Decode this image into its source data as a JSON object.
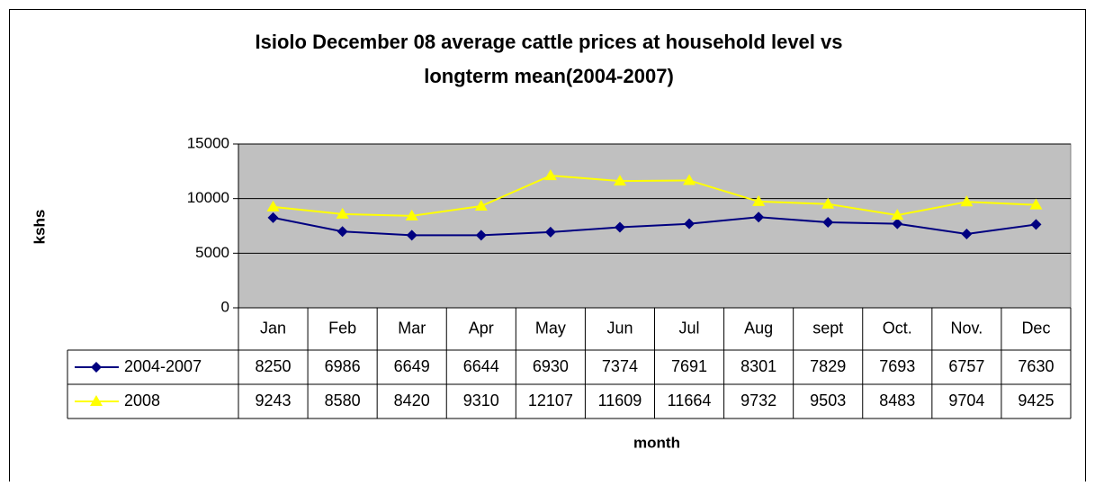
{
  "chart_data": {
    "type": "line",
    "title": [
      "Isiolo December 08 average cattle prices at household level vs",
      "longterm mean(2004-2007)"
    ],
    "x_label": "month",
    "y_label": "kshs",
    "categories": [
      "Jan",
      "Feb",
      "Mar",
      "Apr",
      "May",
      "Jun",
      "Jul",
      "Aug",
      "sept",
      "Oct.",
      "Nov.",
      "Dec"
    ],
    "series": [
      {
        "name": "2004-2007",
        "color": "#000080",
        "marker": "diamond",
        "values": [
          8250,
          6986,
          6649,
          6644,
          6930,
          7374,
          7691,
          8301,
          7829,
          7693,
          6757,
          7630
        ]
      },
      {
        "name": "2008",
        "color": "#ffff00",
        "marker": "triangle",
        "values": [
          9243,
          8580,
          8420,
          9310,
          12107,
          11609,
          11664,
          9732,
          9503,
          8483,
          9704,
          9425
        ]
      }
    ],
    "ylim": [
      0,
      15000
    ],
    "yticks": [
      0,
      5000,
      10000,
      15000
    ],
    "grid": true,
    "plot_background": "#c0c0c0"
  }
}
